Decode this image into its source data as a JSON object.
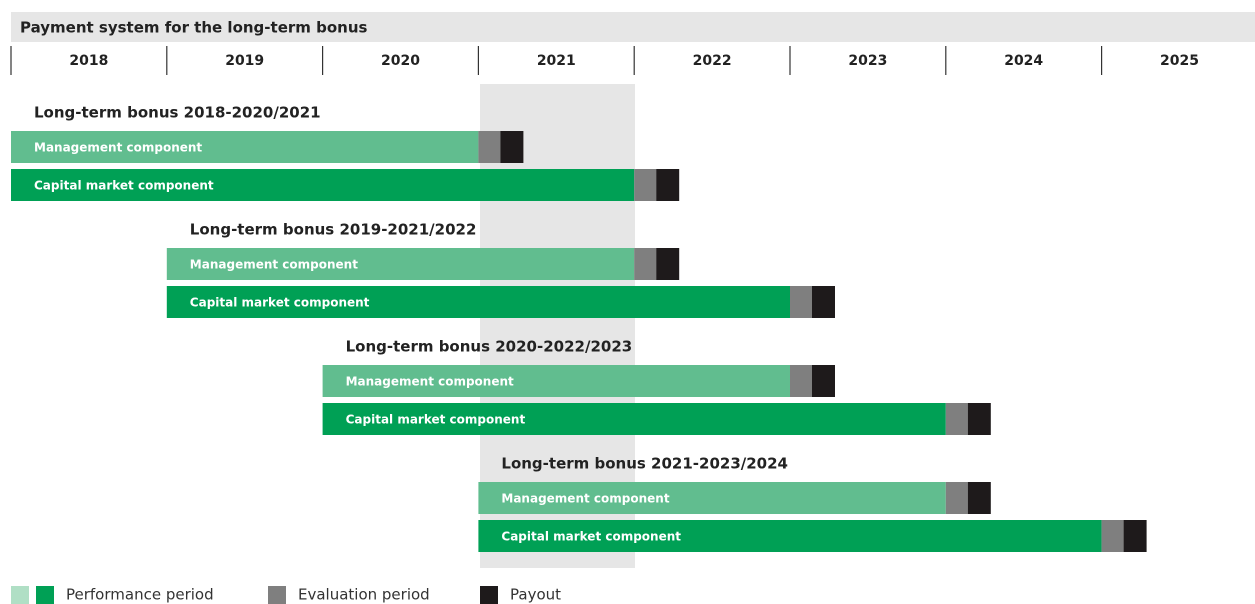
{
  "title": "Payment system for the long-term bonus",
  "years": [
    "2018",
    "2019",
    "2020",
    "2021",
    "2022",
    "2023",
    "2024",
    "2025"
  ],
  "groups": [
    {
      "title": "Long-term bonus 2018-2020/2021",
      "components": [
        "Management component",
        "Capital market component"
      ]
    },
    {
      "title": "Long-term bonus 2019-2021/2022",
      "components": [
        "Management component",
        "Capital market component"
      ]
    },
    {
      "title": "Long-term bonus 2020-2022/2023",
      "components": [
        "Management component",
        "Capital market component"
      ]
    },
    {
      "title": "Long-term bonus 2021-2023/2024",
      "components": [
        "Management component",
        "Capital market component"
      ]
    }
  ],
  "legend": [
    "Performance period",
    "Evaluation period",
    "Payout"
  ]
}
